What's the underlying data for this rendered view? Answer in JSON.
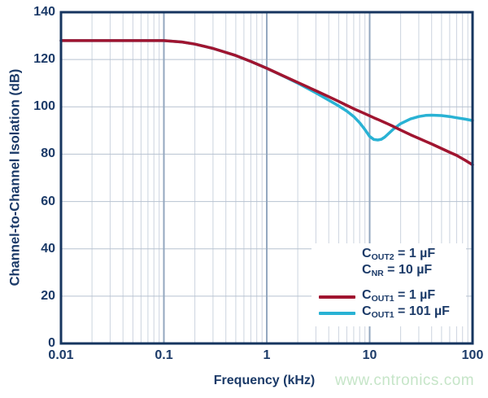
{
  "colors": {
    "axis": "#16355f",
    "label_text": "#1b3a68",
    "grid_minor": "#ccd4df",
    "grid_major": "#b7c2d0",
    "grid_decade": "#93a7bf",
    "series_red": "#a01530",
    "series_cyan": "#29b2d4",
    "watermark_green": "#c6e5c8",
    "background": "#ffffff"
  },
  "chart_data": {
    "type": "line",
    "title": "",
    "xlabel": "Frequency (kHz)",
    "ylabel": "Channel-to-Channel Isolation (dB)",
    "x_scale": "log",
    "xlim": [
      0.01,
      100
    ],
    "ylim": [
      0,
      140
    ],
    "x_ticks": [
      0.01,
      0.1,
      1,
      10,
      100
    ],
    "x_tick_labels": [
      "0.01",
      "0.1",
      "1",
      "10",
      "100"
    ],
    "y_ticks": [
      0,
      20,
      40,
      60,
      80,
      100,
      120,
      140
    ],
    "y_tick_labels": [
      "0",
      "20",
      "40",
      "60",
      "80",
      "100",
      "120",
      "140"
    ],
    "grid": "log minor verticals + 20 dB horizontals, legend box overlaps grid",
    "legend_position": "lower-right",
    "x": [
      0.01,
      0.02,
      0.05,
      0.1,
      0.15,
      0.2,
      0.3,
      0.5,
      0.7,
      1,
      1.5,
      2,
      3,
      4,
      5,
      6,
      7,
      8,
      9,
      10,
      11,
      12,
      13,
      14,
      15,
      17,
      20,
      25,
      30,
      35,
      40,
      50,
      60,
      70,
      85,
      100
    ],
    "series": [
      {
        "name": "COUT1 = 1 µF",
        "color": "#a01530",
        "y": [
          128,
          128,
          128,
          128,
          127.4,
          126.5,
          124.7,
          121.7,
          119.2,
          116.3,
          112.8,
          110.3,
          106.8,
          104.3,
          102.3,
          100.6,
          99.2,
          98.1,
          97.1,
          96.2,
          95.4,
          94.7,
          94.0,
          93.4,
          92.8,
          91.7,
          90.2,
          88.2,
          86.7,
          85.4,
          84.3,
          82.4,
          80.8,
          79.5,
          77.4,
          75.5
        ]
      },
      {
        "name": "COUT1 = 101 µF",
        "color": "#29b2d4",
        "y": [
          128,
          128,
          128,
          128,
          127.4,
          126.5,
          124.7,
          121.7,
          119.2,
          116.3,
          112.7,
          110.0,
          105.9,
          102.8,
          100.4,
          98.2,
          95.9,
          93.3,
          90.4,
          87.5,
          86.2,
          86.0,
          86.3,
          87.2,
          88.4,
          90.6,
          92.9,
          94.9,
          95.9,
          96.4,
          96.5,
          96.3,
          95.9,
          95.4,
          94.8,
          94.2
        ]
      }
    ],
    "annotations": [
      "COUT2 = 1 µF",
      "CNR = 10 µF"
    ]
  },
  "legend": {
    "notes": [
      {
        "base": "C",
        "sub": "OUT2",
        "rest": " = 1 µF"
      },
      {
        "base": "C",
        "sub": "NR",
        "rest": " = 10 µF"
      }
    ],
    "entries": [
      {
        "base": "C",
        "sub": "OUT1",
        "rest": " = 1 µF"
      },
      {
        "base": "C",
        "sub": "OUT1",
        "rest": " = 101 µF"
      }
    ]
  },
  "watermark": "www.cntronics.com"
}
